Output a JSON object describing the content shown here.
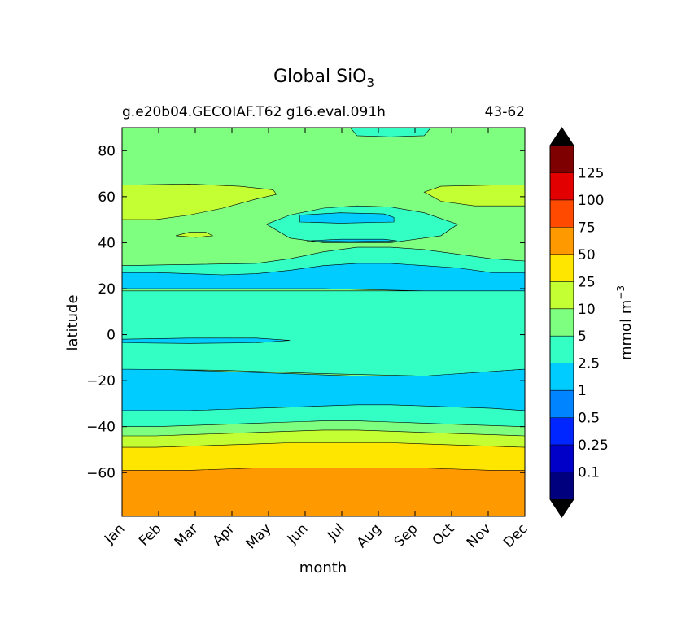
{
  "chart_data": {
    "type": "contour",
    "title": "Global SiO",
    "title_subscript": "3",
    "subtitle_left": "g.e20b04.GECOIAF.T62 g16.eval.091h",
    "subtitle_right": "43-62",
    "xlabel": "month",
    "ylabel": "latitude",
    "x_categories": [
      "Jan",
      "Feb",
      "Mar",
      "Apr",
      "May",
      "Jun",
      "Jul",
      "Aug",
      "Sep",
      "Oct",
      "Nov",
      "Dec"
    ],
    "ylim": [
      -79,
      90
    ],
    "y_ticks": [
      80,
      60,
      40,
      20,
      0,
      -20,
      -40,
      -60
    ],
    "y_tick_labels": [
      "80",
      "60",
      "40",
      "20",
      "0",
      "−20",
      "−40",
      "−60"
    ],
    "colorbar": {
      "label": "mmol m",
      "label_superscript": "−3",
      "levels": [
        "0.1",
        "0.25",
        "0.5",
        "1",
        "2.5",
        "5",
        "10",
        "25",
        "50",
        "75",
        "100",
        "125"
      ],
      "colors": [
        "#00007f",
        "#0000c8",
        "#0026ff",
        "#0084ff",
        "#00ccff",
        "#33ffc4",
        "#7fff7f",
        "#c4ff33",
        "#ffe600",
        "#ff9900",
        "#ff4a00",
        "#e30000",
        "#7f0000"
      ],
      "extend": "both",
      "under_color": "#000000",
      "over_color": "#000000"
    },
    "bands": [
      {
        "color": "#ff9900",
        "level": "50-75",
        "boundary_profile": {
          "top": [
            -59,
            -59,
            -59,
            -58.5,
            -58,
            -58,
            -58,
            -58,
            -58,
            -58,
            -58.5,
            -59,
            -59
          ]
        }
      },
      {
        "color": "#ffe600",
        "level": "25-50",
        "boundary_profile": {
          "top": [
            -49,
            -49,
            -48.5,
            -48,
            -47.5,
            -47,
            -47,
            -47,
            -47,
            -47.5,
            -48,
            -48.5,
            -49
          ]
        }
      },
      {
        "color": "#c4ff33",
        "level": "10-25",
        "boundary_profile": {
          "top": [
            -44,
            -44,
            -43.5,
            -43,
            -42.5,
            -42,
            -41.5,
            -41.5,
            -42,
            -42.5,
            -43,
            -43.5,
            -44
          ]
        }
      },
      {
        "color": "#7fff7f",
        "level": "5-10",
        "boundary_profile": {
          "top": [
            -40,
            -40,
            -39.5,
            -39,
            -38.5,
            -38,
            -37.5,
            -37.5,
            -38,
            -38.5,
            -39,
            -39.5,
            -40
          ]
        }
      },
      {
        "color": "#33ffc4",
        "level": "2.5-5",
        "boundary_profile": {
          "top": [
            -33,
            -33,
            -33,
            -32.5,
            -32,
            -31.5,
            -31,
            -30.5,
            -30.5,
            -31,
            -31.5,
            -32,
            -33
          ]
        }
      },
      {
        "color": "#00ccff",
        "level": "1-2.5",
        "boundary_profile": {
          "top": [
            -15,
            -15,
            -15.5,
            -16,
            -16.5,
            -17,
            -17.5,
            -18,
            -18,
            -17.5,
            -17,
            -16,
            -15
          ]
        }
      }
    ],
    "features": [
      {
        "color": "#7fff7f",
        "level": "5-10",
        "region": "north of ~30°N"
      },
      {
        "color": "#c4ff33",
        "level": "10-25",
        "region": "~48-65°N, Jan-Apr and Nov-Dec"
      },
      {
        "color": "#33ffc4",
        "level": "2.5-5",
        "region": "~40-55°N, May-Oct; near 90°N, Aug-Sep"
      },
      {
        "color": "#00ccff",
        "level": "1-2.5",
        "region": "~20-30°N; ~48-52°N Jun-Aug; ~0-(-2)° Jan-May"
      }
    ]
  }
}
